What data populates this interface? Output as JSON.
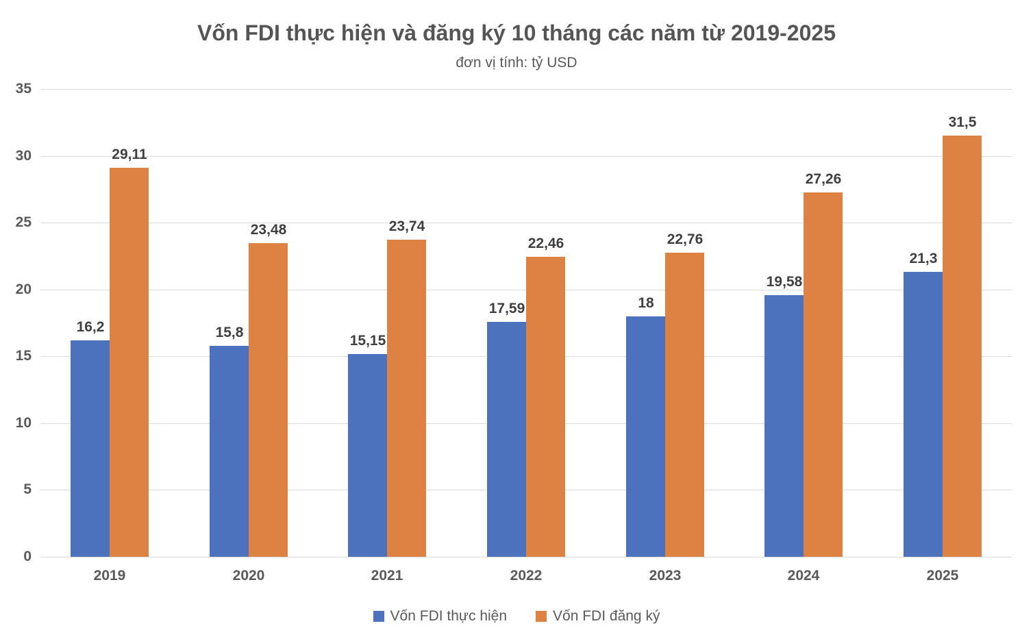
{
  "title": "Vốn FDI thực hiện và đăng ký 10 tháng các năm từ 2019-2025",
  "subtitle": "đơn vị tính: tỷ USD",
  "colors": {
    "series_thuc_hien": "#4C71BD",
    "series_dang_ky": "#DE8244",
    "gridline": "#D9D9D9",
    "axis_text": "#595959",
    "value_label_text": "#3F3F3F",
    "title_text": "#555555",
    "background": "#FFFFFF"
  },
  "chart_data": {
    "type": "bar",
    "title": "Vốn FDI thực hiện và đăng ký 10 tháng các năm từ 2019-2025",
    "subtitle": "đơn vị tính: tỷ USD",
    "unit": "tỷ USD",
    "categories": [
      "2019",
      "2020",
      "2021",
      "2022",
      "2023",
      "2024",
      "2025"
    ],
    "series": [
      {
        "name": "Vốn FDI thực hiện",
        "color": "#4C71BD",
        "values": [
          16.2,
          15.8,
          15.15,
          17.59,
          18,
          19.58,
          21.3
        ],
        "value_labels": [
          "16,2",
          "15,8",
          "15,15",
          "17,59",
          "18",
          "19,58",
          "21,3"
        ]
      },
      {
        "name": "Vốn FDI đăng ký",
        "color": "#DE8244",
        "values": [
          29.11,
          23.48,
          23.74,
          22.46,
          22.76,
          27.26,
          31.5
        ],
        "value_labels": [
          "29,11",
          "23,48",
          "23,74",
          "22,46",
          "22,76",
          "27,26",
          "31,5"
        ]
      }
    ],
    "ylim": [
      0,
      35
    ],
    "yticks": [
      0,
      5,
      10,
      15,
      20,
      25,
      30,
      35
    ],
    "ytick_labels": [
      "0",
      "5",
      "10",
      "15",
      "20",
      "25",
      "30",
      "35"
    ],
    "grid": true,
    "legend_position": "bottom"
  }
}
